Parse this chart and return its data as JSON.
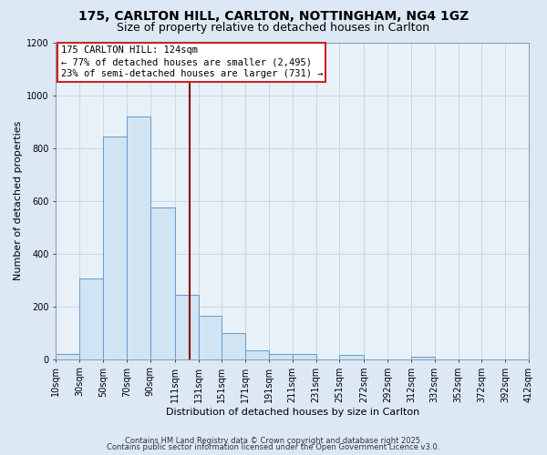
{
  "title": "175, CARLTON HILL, CARLTON, NOTTINGHAM, NG4 1GZ",
  "subtitle": "Size of property relative to detached houses in Carlton",
  "xlabel": "Distribution of detached houses by size in Carlton",
  "ylabel": "Number of detached properties",
  "annotation_line1": "175 CARLTON HILL: 124sqm",
  "annotation_line2": "← 77% of detached houses are smaller (2,495)",
  "annotation_line3": "23% of semi-detached houses are larger (731) →",
  "bin_edges": [
    10,
    30,
    50,
    70,
    90,
    111,
    131,
    151,
    171,
    191,
    211,
    231,
    251,
    272,
    292,
    312,
    332,
    352,
    372,
    392,
    412
  ],
  "bin_values": [
    20,
    305,
    845,
    920,
    575,
    245,
    165,
    100,
    35,
    20,
    20,
    0,
    15,
    0,
    0,
    10,
    0,
    0,
    0,
    0
  ],
  "bar_color": "#d0e4f4",
  "bar_edge_color": "#6699cc",
  "vline_color": "#880000",
  "vline_x": 124,
  "ylim": [
    0,
    1200
  ],
  "xlim_left": 10,
  "xlim_right": 412,
  "yticks": [
    0,
    200,
    400,
    600,
    800,
    1000,
    1200
  ],
  "xtick_labels": [
    "10sqm",
    "30sqm",
    "50sqm",
    "70sqm",
    "90sqm",
    "111sqm",
    "131sqm",
    "151sqm",
    "171sqm",
    "191sqm",
    "211sqm",
    "231sqm",
    "251sqm",
    "272sqm",
    "292sqm",
    "312sqm",
    "332sqm",
    "352sqm",
    "372sqm",
    "392sqm",
    "412sqm"
  ],
  "xtick_positions": [
    10,
    30,
    50,
    70,
    90,
    111,
    131,
    151,
    171,
    191,
    211,
    231,
    251,
    272,
    292,
    312,
    332,
    352,
    372,
    392,
    412
  ],
  "grid_color": "#c8d8e8",
  "bg_color": "#dce8f4",
  "plot_bg_color": "#e8f0f8",
  "footer_line1": "Contains HM Land Registry data © Crown copyright and database right 2025.",
  "footer_line2": "Contains public sector information licensed under the Open Government Licence v3.0.",
  "title_fontsize": 10,
  "subtitle_fontsize": 9,
  "axis_label_fontsize": 8,
  "tick_fontsize": 7,
  "annotation_fontsize": 7.5,
  "footer_fontsize": 6
}
